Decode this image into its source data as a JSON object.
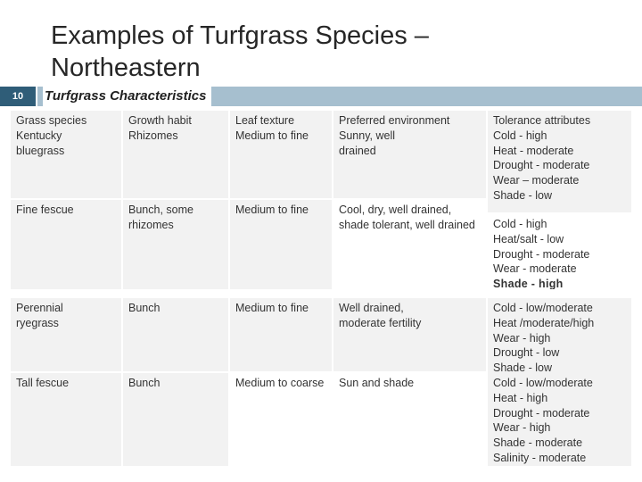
{
  "slide": {
    "title_lines": [
      "Examples of Turfgrass Species –",
      "Northeastern"
    ],
    "number": "10",
    "subtitle": "Turfgrass Characteristics"
  },
  "table": {
    "headers": [
      "Grass species",
      "Growth habit",
      "Leaf texture",
      "Preferred environment",
      "Tolerance attributes"
    ],
    "rows": [
      {
        "species": [
          "Kentucky",
          "bluegrass"
        ],
        "growth": [
          "Rhizomes"
        ],
        "texture": [
          "Medium to fine"
        ],
        "environment": [
          "Sunny, well",
          "drained"
        ],
        "tolerance": [
          "Cold - high",
          "Heat - moderate",
          "Drought - moderate",
          "Wear – moderate",
          "Shade - low"
        ]
      },
      {
        "species": [
          "Fine fescue"
        ],
        "growth": [
          "Bunch, some",
          "rhizomes"
        ],
        "texture": [
          "Medium to fine"
        ],
        "environment": [
          "Cool, dry, well drained,",
          "shade tolerant, well drained"
        ],
        "tolerance": [
          "Cold - high",
          "Heat/salt - low",
          "Drought - moderate",
          "Wear - moderate",
          "Shade - high"
        ]
      },
      {
        "species": [
          "Perennial",
          "ryegrass"
        ],
        "growth": [
          "Bunch"
        ],
        "texture": [
          "Medium to fine"
        ],
        "environment": [
          "Well drained,",
          "moderate fertility"
        ],
        "tolerance": [
          "Cold - low/moderate",
          "Heat /moderate/high",
          "Wear - high",
          "Drought - low",
          "Shade - low"
        ]
      },
      {
        "species": [
          "Tall fescue"
        ],
        "growth": [
          "Bunch"
        ],
        "texture": [
          "Medium to coarse"
        ],
        "environment": [
          "Sun and shade"
        ],
        "tolerance": [
          "Cold - low/moderate",
          "Heat - high",
          "Drought - moderate",
          "Wear - high",
          "Shade - moderate",
          "Salinity - moderate"
        ]
      }
    ]
  }
}
